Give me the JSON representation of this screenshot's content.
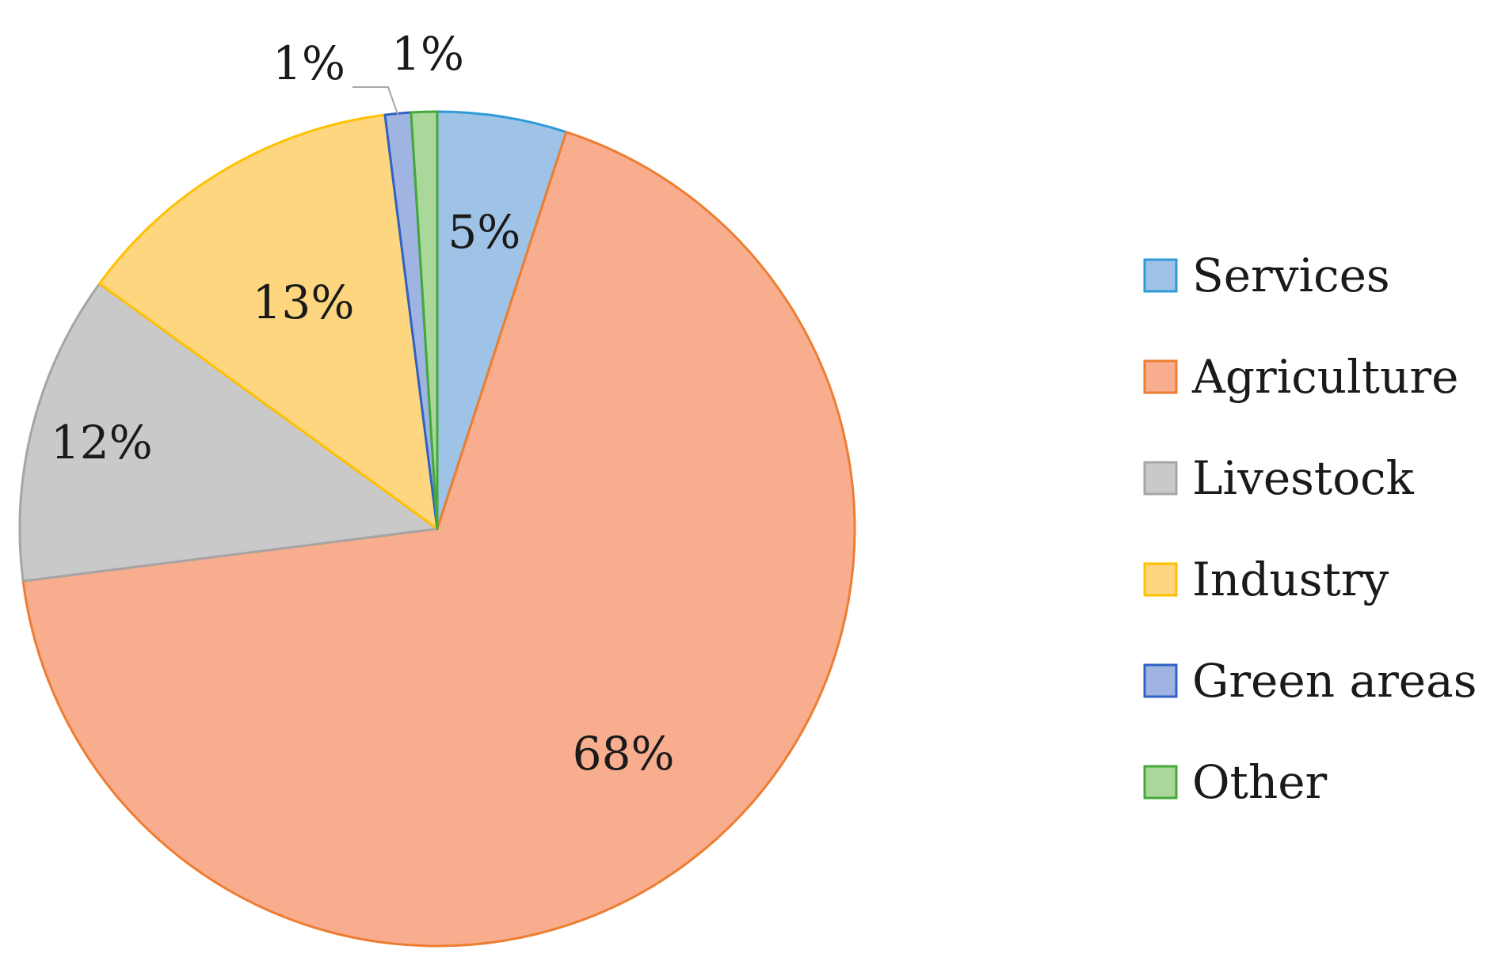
{
  "chart_data": {
    "type": "pie",
    "title": "",
    "slices": [
      {
        "name": "Services",
        "value": 5,
        "label": "5%",
        "fill": "#9ec3e6",
        "stroke": "#2e9ad6"
      },
      {
        "name": "Agriculture",
        "value": 68,
        "label": "68%",
        "fill": "#f9ad8f",
        "stroke": "#ed7d31"
      },
      {
        "name": "Livestock",
        "value": 12,
        "label": "12%",
        "fill": "#c9c9c9",
        "stroke": "#a5a5a5"
      },
      {
        "name": "Industry",
        "value": 13,
        "label": "13%",
        "fill": "#fed67f",
        "stroke": "#ffc000"
      },
      {
        "name": "Green areas",
        "value": 1,
        "label": "1%",
        "fill": "#9fb4e0",
        "stroke": "#2f62c4"
      },
      {
        "name": "Other",
        "value": 1,
        "label": "1%",
        "fill": "#a9d89a",
        "stroke": "#44a83a"
      }
    ],
    "legend": {
      "placement": "right",
      "entries": [
        "Services",
        "Agriculture",
        "Livestock",
        "Industry",
        "Green areas",
        "Other"
      ]
    },
    "start_direction": "top",
    "direction": "clockwise"
  }
}
